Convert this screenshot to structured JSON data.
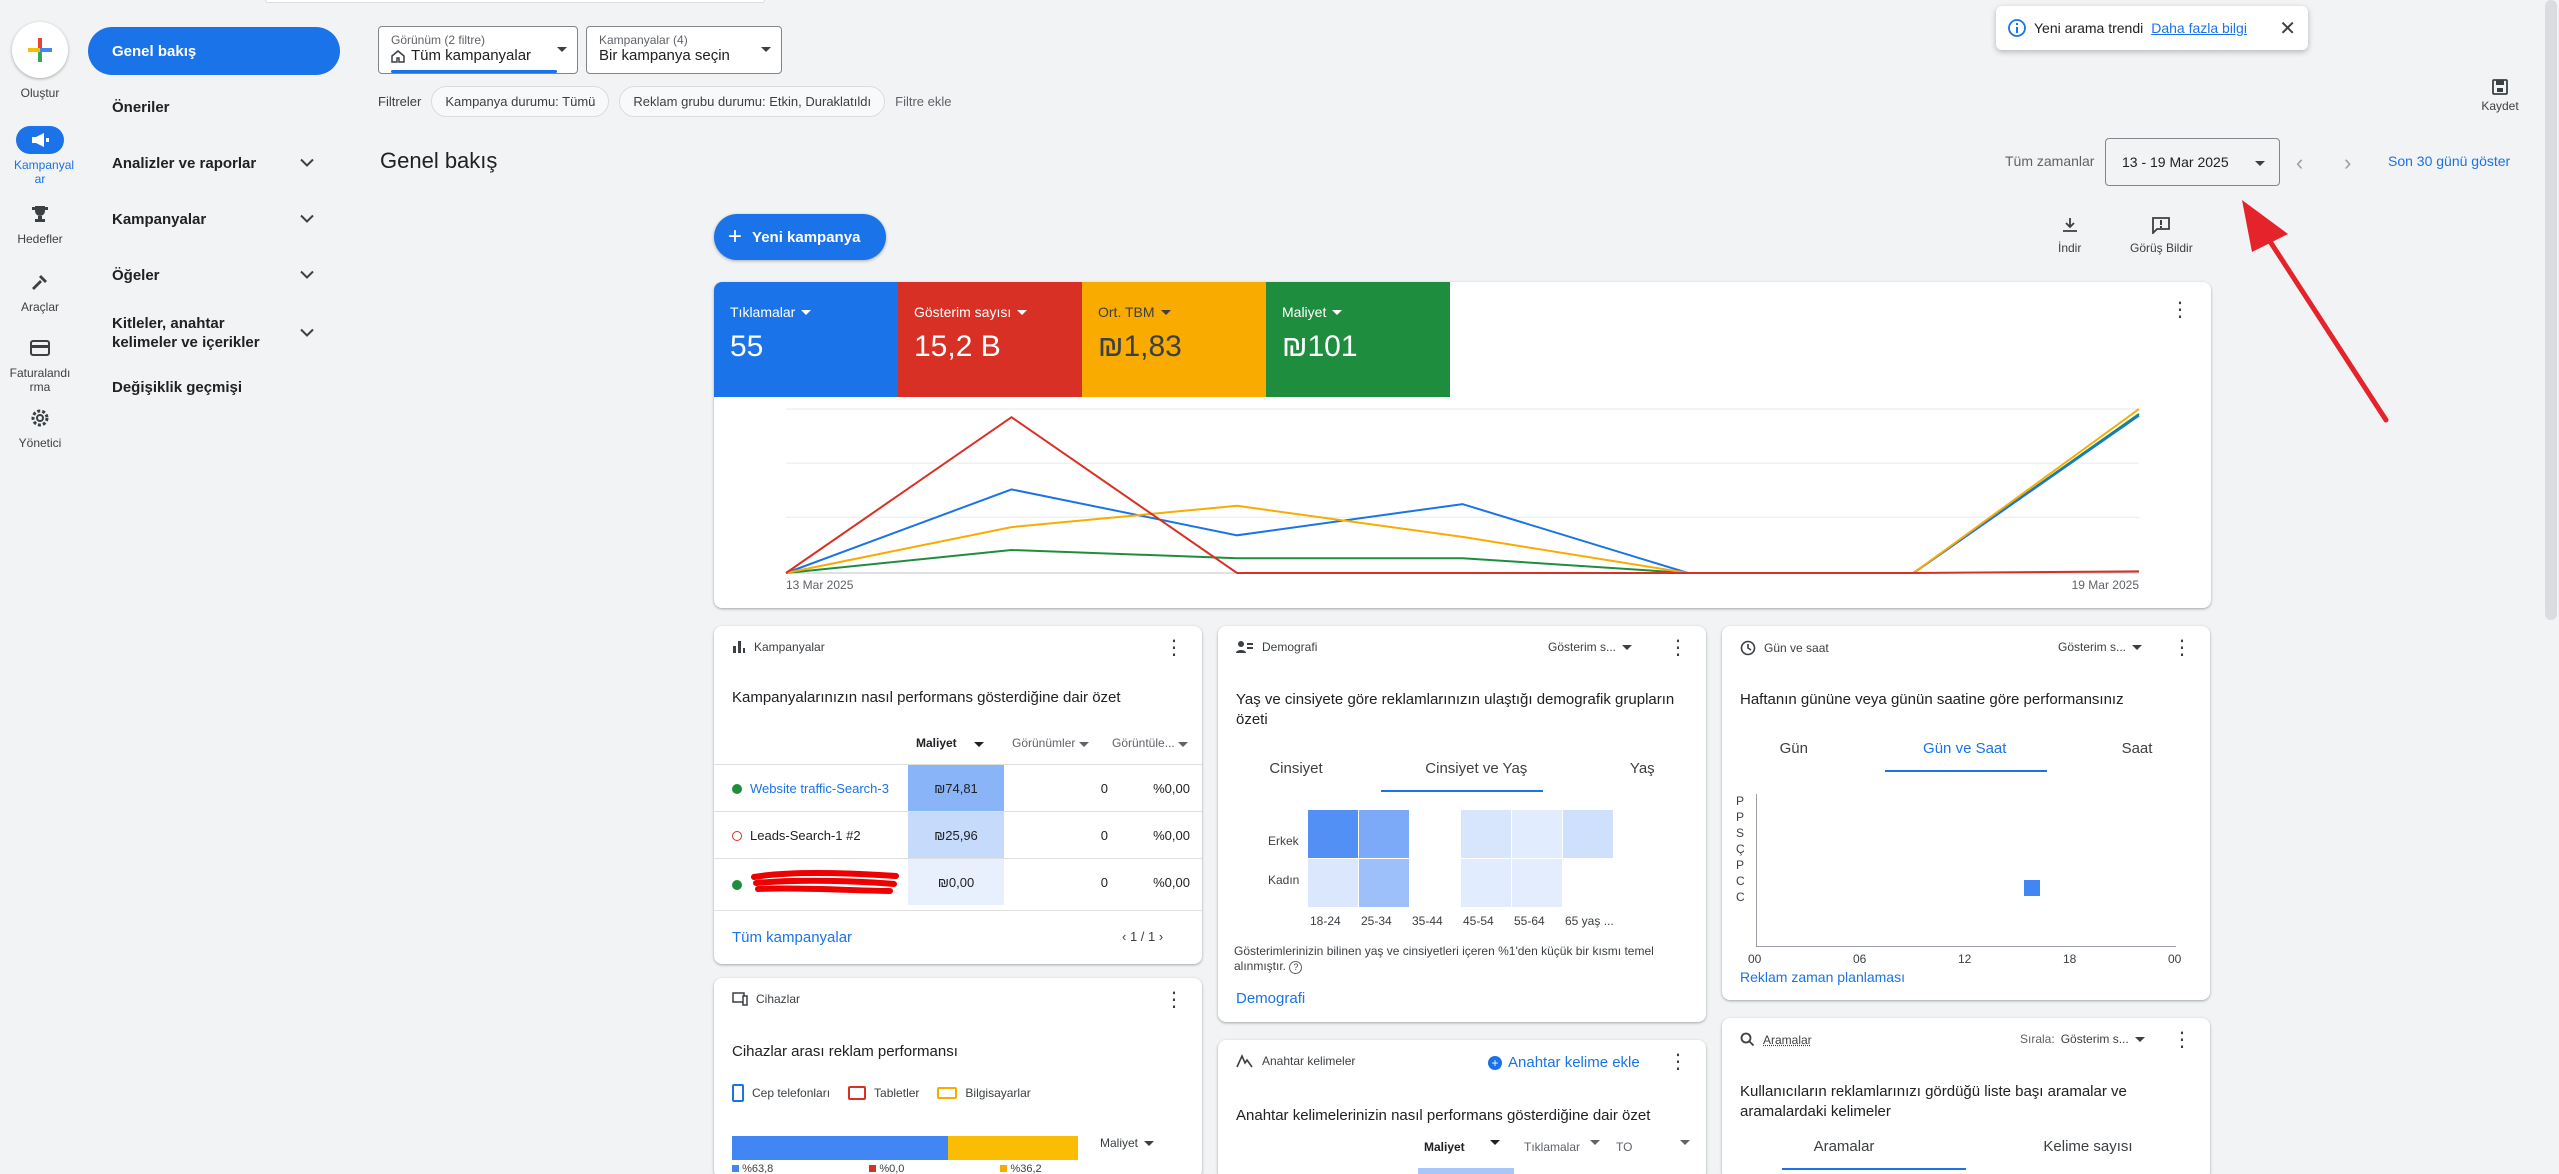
{
  "rail": {
    "create_label": "Oluştur",
    "items": [
      {
        "label": "Kampanyal ar",
        "icon": "megaphone-icon"
      },
      {
        "label": "Hedefler",
        "icon": "trophy-icon"
      },
      {
        "label": "Araçlar",
        "icon": "tools-icon"
      },
      {
        "label": "Faturalandı rma",
        "icon": "credit-card-icon"
      },
      {
        "label": "Yönetici",
        "icon": "gear-icon"
      }
    ]
  },
  "sidebar": {
    "items": [
      {
        "label": "Genel bakış"
      },
      {
        "label": "Öneriler"
      },
      {
        "label": "Analizler ve raporlar"
      },
      {
        "label": "Kampanyalar"
      },
      {
        "label": "Öğeler"
      },
      {
        "label": "Kitleler, anahtar kelimeler ve içerikler"
      },
      {
        "label": "Değişiklik geçmişi"
      }
    ]
  },
  "filters": {
    "view_label": "Görünüm (2 filtre)",
    "view_value": "Tüm kampanyalar",
    "campaigns_label": "Kampanyalar (4)",
    "campaigns_value": "Bir kampanya seçin",
    "filters_label": "Filtreler",
    "chip1": "Kampanya durumu: Tümü",
    "chip2": "Reklam grubu durumu: Etkin, Duraklatıldı",
    "add_filter": "Filtre ekle"
  },
  "toast": {
    "text": "Yeni arama trendi",
    "link": "Daha fazla bilgi"
  },
  "save_label": "Kaydet",
  "page_title": "Genel bakış",
  "date": {
    "all_time": "Tüm zamanlar",
    "range": "13 - 19 Mar 2025",
    "last30": "Son 30 günü göster"
  },
  "new_campaign": "Yeni kampanya",
  "download_label": "İndir",
  "feedback_label": "Görüş Bildir",
  "metrics": [
    {
      "label": "Tıklamalar",
      "value": "55",
      "color": "#1a73e8"
    },
    {
      "label": "Gösterim sayısı",
      "value": "15,2 B",
      "color": "#d93025"
    },
    {
      "label": "Ort. TBM",
      "value": "₪1,83",
      "color": "#f9ab00"
    },
    {
      "label": "Maliyet",
      "value": "₪101",
      "color": "#1e8e3e"
    }
  ],
  "chart_data": {
    "type": "line",
    "x_start_label": "13 Mar 2025",
    "x_end_label": "19 Mar 2025",
    "x": [
      "13 Mar",
      "14 Mar",
      "15 Mar",
      "16 Mar",
      "17 Mar",
      "18 Mar",
      "19 Mar"
    ],
    "series": [
      {
        "name": "Tıklamalar",
        "color": "#1a73e8",
        "values": [
          0,
          0.51,
          0.23,
          0.42,
          0,
          0,
          0.96
        ]
      },
      {
        "name": "Gösterim sayısı",
        "color": "#d93025",
        "values": [
          0,
          0.95,
          0,
          0,
          0,
          0,
          0.01
        ]
      },
      {
        "name": "Ort. TBM",
        "color": "#f9ab00",
        "values": [
          0,
          0.28,
          0.41,
          0.22,
          0,
          0,
          1.0
        ]
      },
      {
        "name": "Maliyet",
        "color": "#1e8e3e",
        "values": [
          0,
          0.14,
          0.09,
          0.09,
          0,
          0,
          0.97
        ]
      }
    ]
  },
  "campaigns_card": {
    "title": "Kampanyalar",
    "subtitle": "Kampanyalarınızın nasıl performans gösterdiğine dair özet",
    "col_cost": "Maliyet",
    "col_views": "Görünümler",
    "col_rate": "Görüntüle...",
    "rows": [
      {
        "name": "Website traffic-Search-3",
        "cost": "₪74,81",
        "views": "0",
        "rate": "%0,00",
        "status": "#1e8e3e"
      },
      {
        "name": "Leads-Search-1 #2",
        "cost": "₪25,96",
        "views": "0",
        "rate": "%0,00",
        "status": "#d93025"
      },
      {
        "name": "",
        "cost": "₪0,00",
        "views": "0",
        "rate": "%0,00",
        "status": "#1e8e3e"
      }
    ],
    "link": "Tüm kampanyalar",
    "pager": "1 / 1"
  },
  "demo_card": {
    "title": "Demografi",
    "metric_dd": "Gösterim s...",
    "subtitle": "Yaş ve cinsiyete göre reklamlarınızın ulaştığı demografik grupların özeti",
    "tabs": [
      "Cinsiyet",
      "Cinsiyet ve Yaş",
      "Yaş"
    ],
    "row_labels": [
      "Erkek",
      "Kadın"
    ],
    "age_labels": [
      "18-24",
      "25-34",
      "35-44",
      "45-54",
      "55-64",
      "65 yaş ..."
    ],
    "heat_male": [
      0.9,
      0.65,
      0,
      0.1,
      0.04,
      0.15
    ],
    "heat_female": [
      0.08,
      0.45,
      0,
      0.04,
      0.03,
      0
    ],
    "note": "Gösterimlerinizin bilinen yaş ve cinsiyetleri içeren %1'den küçük bir kısmı temel alınmıştır.",
    "link": "Demografi"
  },
  "day_card": {
    "title": "Gün ve saat",
    "metric_dd": "Gösterim s...",
    "subtitle": "Haftanın gününe veya günün saatine göre performansınız",
    "tabs": [
      "Gün",
      "Gün ve Saat",
      "Saat"
    ],
    "days": [
      "P",
      "P",
      "S",
      "Ç",
      "P",
      "C",
      "C"
    ],
    "hours": [
      "00",
      "06",
      "12",
      "18",
      "00"
    ],
    "link": "Reklam zaman planlaması"
  },
  "devices_card": {
    "title": "Cihazlar",
    "subtitle": "Cihazlar arası reklam performansı",
    "legend": [
      "Cep telefonları",
      "Tabletler",
      "Bilgisayarlar"
    ],
    "metric_dd": "Maliyet",
    "shares": [
      "%63,8",
      "%0,0",
      "%36,2"
    ]
  },
  "keywords_card": {
    "title": "Anahtar kelimeler",
    "add": "Anahtar kelime ekle",
    "subtitle": "Anahtar kelimelerinizin nasıl performans gösterdiğine dair özet",
    "cols": [
      "Maliyet",
      "Tıklamalar",
      "TO"
    ]
  },
  "search_card": {
    "title": "Aramalar",
    "sort_label": "Sırala:",
    "sort_value": "Gösterim s...",
    "subtitle": "Kullanıcıların reklamlarınızı gördüğü liste başı aramalar ve aramalardaki kelimeler",
    "tabs": [
      "Aramalar",
      "Kelime sayısı"
    ]
  }
}
